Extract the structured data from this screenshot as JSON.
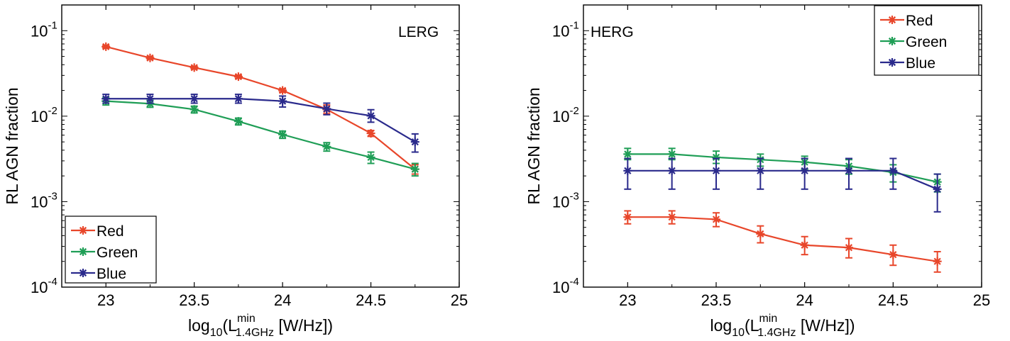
{
  "chart_data": [
    {
      "type": "line",
      "panel_label": "LERG",
      "xlabel": {
        "prefix": "log",
        "sub1": "10",
        "open": "(L",
        "sup": "min",
        "sub2": "1.4GHz",
        "rest": " [W/Hz])"
      },
      "ylabel": "RL AGN fraction",
      "xlim": [
        22.75,
        25
      ],
      "ylim": [
        0.0001,
        0.2
      ],
      "yscale": "log",
      "xticks": [
        "23",
        "23.5",
        "24",
        "24.5",
        "25"
      ],
      "xtick_values": [
        23,
        23.5,
        24,
        24.5,
        25
      ],
      "yticks": [
        {
          "base": "10",
          "exp": "-4",
          "value": 0.0001
        },
        {
          "base": "10",
          "exp": "-3",
          "value": 0.001
        },
        {
          "base": "10",
          "exp": "-2",
          "value": 0.01
        },
        {
          "base": "10",
          "exp": "-1",
          "value": 0.1
        }
      ],
      "legend_position": "bottom-left",
      "series": [
        {
          "name": "Red",
          "color": "#e8462a",
          "x": [
            23,
            23.25,
            23.5,
            23.75,
            24,
            24.25,
            24.5,
            24.75
          ],
          "y": [
            0.065,
            0.048,
            0.037,
            0.029,
            0.02,
            0.012,
            0.0063,
            0.0024
          ],
          "err_lo": [
            0.0625,
            0.0465,
            0.0358,
            0.0278,
            0.0191,
            0.0107,
            0.0058,
            0.0021
          ],
          "err_hi": [
            0.0675,
            0.0495,
            0.0382,
            0.0302,
            0.0209,
            0.0135,
            0.0068,
            0.0027
          ]
        },
        {
          "name": "Green",
          "color": "#1f9e56",
          "x": [
            23,
            23.25,
            23.5,
            23.75,
            24,
            24.25,
            24.5,
            24.75
          ],
          "y": [
            0.015,
            0.014,
            0.012,
            0.0087,
            0.0061,
            0.0044,
            0.0033,
            0.0024
          ],
          "err_lo": [
            0.0135,
            0.0127,
            0.0109,
            0.0079,
            0.0055,
            0.0039,
            0.0028,
            0.002
          ],
          "err_hi": [
            0.0165,
            0.0153,
            0.0131,
            0.0095,
            0.0067,
            0.0049,
            0.0038,
            0.0028
          ]
        },
        {
          "name": "Blue",
          "color": "#2a2a8c",
          "x": [
            23,
            23.25,
            23.5,
            23.75,
            24,
            24.25,
            24.5,
            24.75
          ],
          "y": [
            0.016,
            0.016,
            0.016,
            0.016,
            0.015,
            0.0122,
            0.0101,
            0.005
          ],
          "err_lo": [
            0.0142,
            0.0142,
            0.0142,
            0.0142,
            0.0128,
            0.0104,
            0.0085,
            0.0038
          ],
          "err_hi": [
            0.018,
            0.018,
            0.018,
            0.018,
            0.0172,
            0.0142,
            0.0119,
            0.0062
          ]
        }
      ]
    },
    {
      "type": "line",
      "panel_label": "HERG",
      "xlabel": {
        "prefix": "log",
        "sub1": "10",
        "open": "(L",
        "sup": "min",
        "sub2": "1.4GHz",
        "rest": " [W/Hz])"
      },
      "ylabel": "RL AGN fraction",
      "xlim": [
        22.75,
        25
      ],
      "ylim": [
        0.0001,
        0.2
      ],
      "yscale": "log",
      "xticks": [
        "23",
        "23.5",
        "24",
        "24.5",
        "25"
      ],
      "xtick_values": [
        23,
        23.5,
        24,
        24.5,
        25
      ],
      "yticks": [
        {
          "base": "10",
          "exp": "-4",
          "value": 0.0001
        },
        {
          "base": "10",
          "exp": "-3",
          "value": 0.001
        },
        {
          "base": "10",
          "exp": "-2",
          "value": 0.01
        },
        {
          "base": "10",
          "exp": "-1",
          "value": 0.1
        }
      ],
      "legend_position": "top-right",
      "series": [
        {
          "name": "Red",
          "color": "#e8462a",
          "x": [
            23,
            23.25,
            23.5,
            23.75,
            24,
            24.25,
            24.5,
            24.75
          ],
          "y": [
            0.00066,
            0.00066,
            0.00062,
            0.00042,
            0.00031,
            0.00029,
            0.00024,
            0.0002
          ],
          "err_lo": [
            0.00055,
            0.00055,
            0.00051,
            0.00033,
            0.00024,
            0.00022,
            0.00018,
            0.00015
          ],
          "err_hi": [
            0.00078,
            0.00078,
            0.00074,
            0.00052,
            0.00039,
            0.00037,
            0.00031,
            0.00026
          ]
        },
        {
          "name": "Green",
          "color": "#1f9e56",
          "x": [
            23,
            23.25,
            23.5,
            23.75,
            24,
            24.25,
            24.5,
            24.75
          ],
          "y": [
            0.0036,
            0.0036,
            0.0033,
            0.0031,
            0.0029,
            0.0026,
            0.0022,
            0.0017
          ],
          "err_lo": [
            0.0031,
            0.0031,
            0.0028,
            0.0026,
            0.0024,
            0.0021,
            0.0017,
            0.0013
          ],
          "err_hi": [
            0.0042,
            0.0042,
            0.0039,
            0.0036,
            0.0034,
            0.0031,
            0.0027,
            0.0021
          ]
        },
        {
          "name": "Blue",
          "color": "#2a2a8c",
          "x": [
            23,
            23.25,
            23.5,
            23.75,
            24,
            24.25,
            24.5,
            24.75
          ],
          "y": [
            0.0023,
            0.0023,
            0.0023,
            0.0023,
            0.0023,
            0.0023,
            0.0023,
            0.0014
          ],
          "err_lo": [
            0.0014,
            0.0014,
            0.0014,
            0.0014,
            0.0014,
            0.0014,
            0.0014,
            0.00076
          ],
          "err_hi": [
            0.0032,
            0.0032,
            0.0032,
            0.0032,
            0.0032,
            0.0032,
            0.0032,
            0.0021
          ]
        }
      ]
    }
  ]
}
